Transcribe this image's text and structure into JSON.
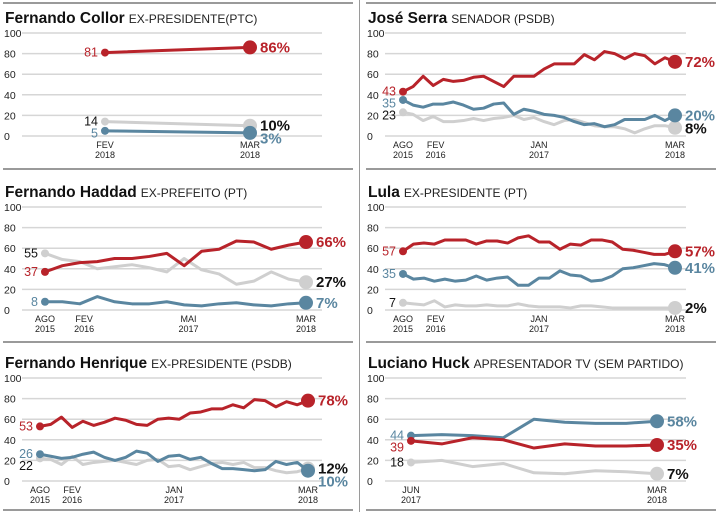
{
  "colors": {
    "red": "#b8232a",
    "blue": "#5a86a0",
    "gray": "#cfcfcf",
    "gray_text": "#111111",
    "grid": "#d6d6d6"
  },
  "chart_data": [
    {
      "type": "line",
      "name": "Fernando Collor",
      "subtitle": "EX-PRESIDENTE(PTC)",
      "ylim": [
        0,
        100
      ],
      "yticks": [
        0,
        20,
        40,
        60,
        80,
        100
      ],
      "grid": true,
      "x_ticks": [
        {
          "pos": 0,
          "label": [
            "FEV",
            "2018"
          ]
        },
        {
          "pos": 1,
          "label": [
            "MAR",
            "2018"
          ]
        }
      ],
      "series": [
        {
          "name": "red",
          "color_key": "red",
          "values": [
            81,
            86
          ],
          "start_label": "81",
          "end_label": "86%"
        },
        {
          "name": "gray",
          "color_key": "gray",
          "values": [
            14,
            10
          ],
          "start_label": "14",
          "end_label": "10%"
        },
        {
          "name": "blue",
          "color_key": "blue",
          "values": [
            5,
            3
          ],
          "start_label": "5",
          "end_label": "3%"
        }
      ]
    },
    {
      "type": "line",
      "name": "José Serra",
      "subtitle": "SENADOR (PSDB)",
      "ylim": [
        0,
        100
      ],
      "yticks": [
        0,
        20,
        40,
        60,
        80,
        100
      ],
      "grid": true,
      "x_ticks": [
        {
          "pos": 0,
          "label": [
            "AGO",
            "2015"
          ]
        },
        {
          "pos": 0.12,
          "label": [
            "FEV",
            "2016"
          ]
        },
        {
          "pos": 0.5,
          "label": [
            "JAN",
            "2017"
          ]
        },
        {
          "pos": 1,
          "label": [
            "MAR",
            "2018"
          ]
        }
      ],
      "series": [
        {
          "name": "red",
          "color_key": "red",
          "values": [
            43,
            48,
            58,
            49,
            55,
            53,
            54,
            57,
            58,
            53,
            48,
            58,
            58,
            58,
            65,
            70,
            70,
            70,
            79,
            74,
            82,
            80,
            75,
            80,
            78,
            70,
            76,
            72
          ],
          "start_label": "43",
          "end_label": "72%"
        },
        {
          "name": "blue",
          "color_key": "blue",
          "values": [
            35,
            30,
            28,
            31,
            31,
            33,
            30,
            26,
            27,
            31,
            32,
            21,
            26,
            24,
            21,
            20,
            18,
            14,
            11,
            12,
            9,
            11,
            16,
            16,
            16,
            20,
            15,
            20
          ],
          "start_label": "35",
          "end_label": "20%"
        },
        {
          "name": "gray",
          "color_key": "gray",
          "values": [
            23,
            21,
            15,
            19,
            14,
            14,
            15,
            17,
            15,
            17,
            18,
            20,
            16,
            18,
            14,
            11,
            15,
            16,
            13,
            10,
            9,
            9,
            7,
            3,
            7,
            10,
            10,
            8
          ],
          "start_label": "23",
          "end_label": "8%"
        }
      ]
    },
    {
      "type": "line",
      "name": "Fernando Haddad",
      "subtitle": "EX-PREFEITO (PT)",
      "ylim": [
        0,
        100
      ],
      "yticks": [
        0,
        20,
        40,
        60,
        80,
        100
      ],
      "grid": true,
      "x_ticks": [
        {
          "pos": 0,
          "label": [
            "AGO",
            "2015"
          ]
        },
        {
          "pos": 0.15,
          "label": [
            "FEV",
            "2016"
          ]
        },
        {
          "pos": 0.55,
          "label": [
            "MAI",
            "2017"
          ]
        },
        {
          "pos": 1,
          "label": [
            "MAR",
            "2018"
          ]
        }
      ],
      "series": [
        {
          "name": "red",
          "color_key": "red",
          "values": [
            37,
            43,
            46,
            47,
            50,
            50,
            52,
            55,
            43,
            57,
            59,
            67,
            66,
            59,
            63,
            66
          ],
          "start_label": "37",
          "end_label": "66%"
        },
        {
          "name": "gray",
          "color_key": "gray",
          "values": [
            55,
            49,
            47,
            40,
            42,
            44,
            41,
            37,
            50,
            39,
            35,
            25,
            28,
            37,
            30,
            27
          ],
          "start_label": "55",
          "end_label": "27%"
        },
        {
          "name": "blue",
          "color_key": "blue",
          "values": [
            8,
            8,
            6,
            13,
            8,
            6,
            6,
            8,
            5,
            4,
            6,
            7,
            5,
            4,
            6,
            7
          ],
          "start_label": "8",
          "end_label": "7%"
        }
      ]
    },
    {
      "type": "line",
      "name": "Lula",
      "subtitle": "EX-PRESIDENTE (PT)",
      "ylim": [
        0,
        100
      ],
      "yticks": [
        0,
        20,
        40,
        60,
        80,
        100
      ],
      "grid": true,
      "x_ticks": [
        {
          "pos": 0,
          "label": [
            "AGO",
            "2015"
          ]
        },
        {
          "pos": 0.12,
          "label": [
            "FEV",
            "2016"
          ]
        },
        {
          "pos": 0.5,
          "label": [
            "JAN",
            "2017"
          ]
        },
        {
          "pos": 1,
          "label": [
            "MAR",
            "2018"
          ]
        }
      ],
      "series": [
        {
          "name": "red",
          "color_key": "red",
          "values": [
            57,
            64,
            65,
            64,
            68,
            68,
            68,
            64,
            67,
            67,
            65,
            70,
            72,
            66,
            66,
            59,
            64,
            63,
            68,
            68,
            66,
            59,
            58,
            56,
            54,
            54,
            57
          ],
          "start_label": "57",
          "end_label": "57%"
        },
        {
          "name": "blue",
          "color_key": "blue",
          "values": [
            35,
            30,
            31,
            28,
            30,
            28,
            29,
            33,
            29,
            31,
            32,
            24,
            24,
            31,
            31,
            38,
            34,
            33,
            28,
            29,
            33,
            40,
            41,
            43,
            45,
            44,
            41
          ],
          "start_label": "35",
          "end_label": "41%"
        },
        {
          "name": "gray",
          "color_key": "gray",
          "values": [
            7,
            6,
            5,
            9,
            3,
            5,
            4,
            4,
            5,
            4,
            4,
            6,
            4,
            3,
            3,
            3,
            2,
            4,
            4,
            3,
            2,
            2,
            2,
            2,
            2,
            2,
            2
          ],
          "start_label": "7",
          "end_label": "2%"
        }
      ]
    },
    {
      "type": "line",
      "name": "Fernando Henrique",
      "subtitle": "EX-PRESIDENTE (PSDB)",
      "ylim": [
        0,
        100
      ],
      "yticks": [
        0,
        20,
        40,
        60,
        80,
        100
      ],
      "grid": true,
      "x_ticks": [
        {
          "pos": 0,
          "label": [
            "AGO",
            "2015"
          ]
        },
        {
          "pos": 0.12,
          "label": [
            "FEV",
            "2016"
          ]
        },
        {
          "pos": 0.5,
          "label": [
            "JAN",
            "2017"
          ]
        },
        {
          "pos": 1,
          "label": [
            "MAR",
            "2018"
          ]
        }
      ],
      "series": [
        {
          "name": "red",
          "color_key": "red",
          "values": [
            53,
            55,
            62,
            52,
            58,
            54,
            57,
            61,
            59,
            55,
            54,
            60,
            61,
            60,
            66,
            67,
            70,
            70,
            74,
            71,
            79,
            78,
            72,
            77,
            74,
            78
          ],
          "start_label": "53",
          "end_label": "78%"
        },
        {
          "name": "blue",
          "color_key": "blue",
          "values": [
            26,
            24,
            22,
            23,
            26,
            28,
            23,
            20,
            23,
            29,
            27,
            19,
            24,
            25,
            21,
            23,
            17,
            12,
            12,
            11,
            10,
            11,
            19,
            16,
            18,
            10
          ],
          "start_label": "26",
          "end_label": "10%"
        },
        {
          "name": "gray",
          "color_key": "gray",
          "values": [
            22,
            21,
            16,
            24,
            16,
            18,
            19,
            20,
            18,
            16,
            20,
            21,
            14,
            15,
            11,
            14,
            17,
            18,
            16,
            18,
            13,
            13,
            10,
            8,
            9,
            12
          ],
          "start_label": "22",
          "end_label": "12%"
        }
      ]
    },
    {
      "type": "line",
      "name": "Luciano Huck",
      "subtitle": "APRESENTADOR TV (SEM PARTIDO)",
      "ylim": [
        0,
        100
      ],
      "yticks": [
        0,
        20,
        40,
        60,
        80,
        100
      ],
      "grid": true,
      "x_ticks": [
        {
          "pos": 0,
          "label": [
            "JUN",
            "2017"
          ]
        },
        {
          "pos": 1,
          "label": [
            "MAR",
            "2018"
          ]
        }
      ],
      "series": [
        {
          "name": "blue",
          "color_key": "blue",
          "values": [
            44,
            45,
            44,
            42,
            60,
            57,
            56,
            56,
            58
          ],
          "start_label": "44",
          "end_label": "58%"
        },
        {
          "name": "red",
          "color_key": "red",
          "values": [
            39,
            36,
            42,
            40,
            32,
            36,
            34,
            34,
            35
          ],
          "start_label": "39",
          "end_label": "35%"
        },
        {
          "name": "gray",
          "color_key": "gray",
          "values": [
            18,
            20,
            14,
            17,
            8,
            7,
            10,
            9,
            7
          ],
          "start_label": "18",
          "end_label": "7%"
        }
      ]
    }
  ]
}
